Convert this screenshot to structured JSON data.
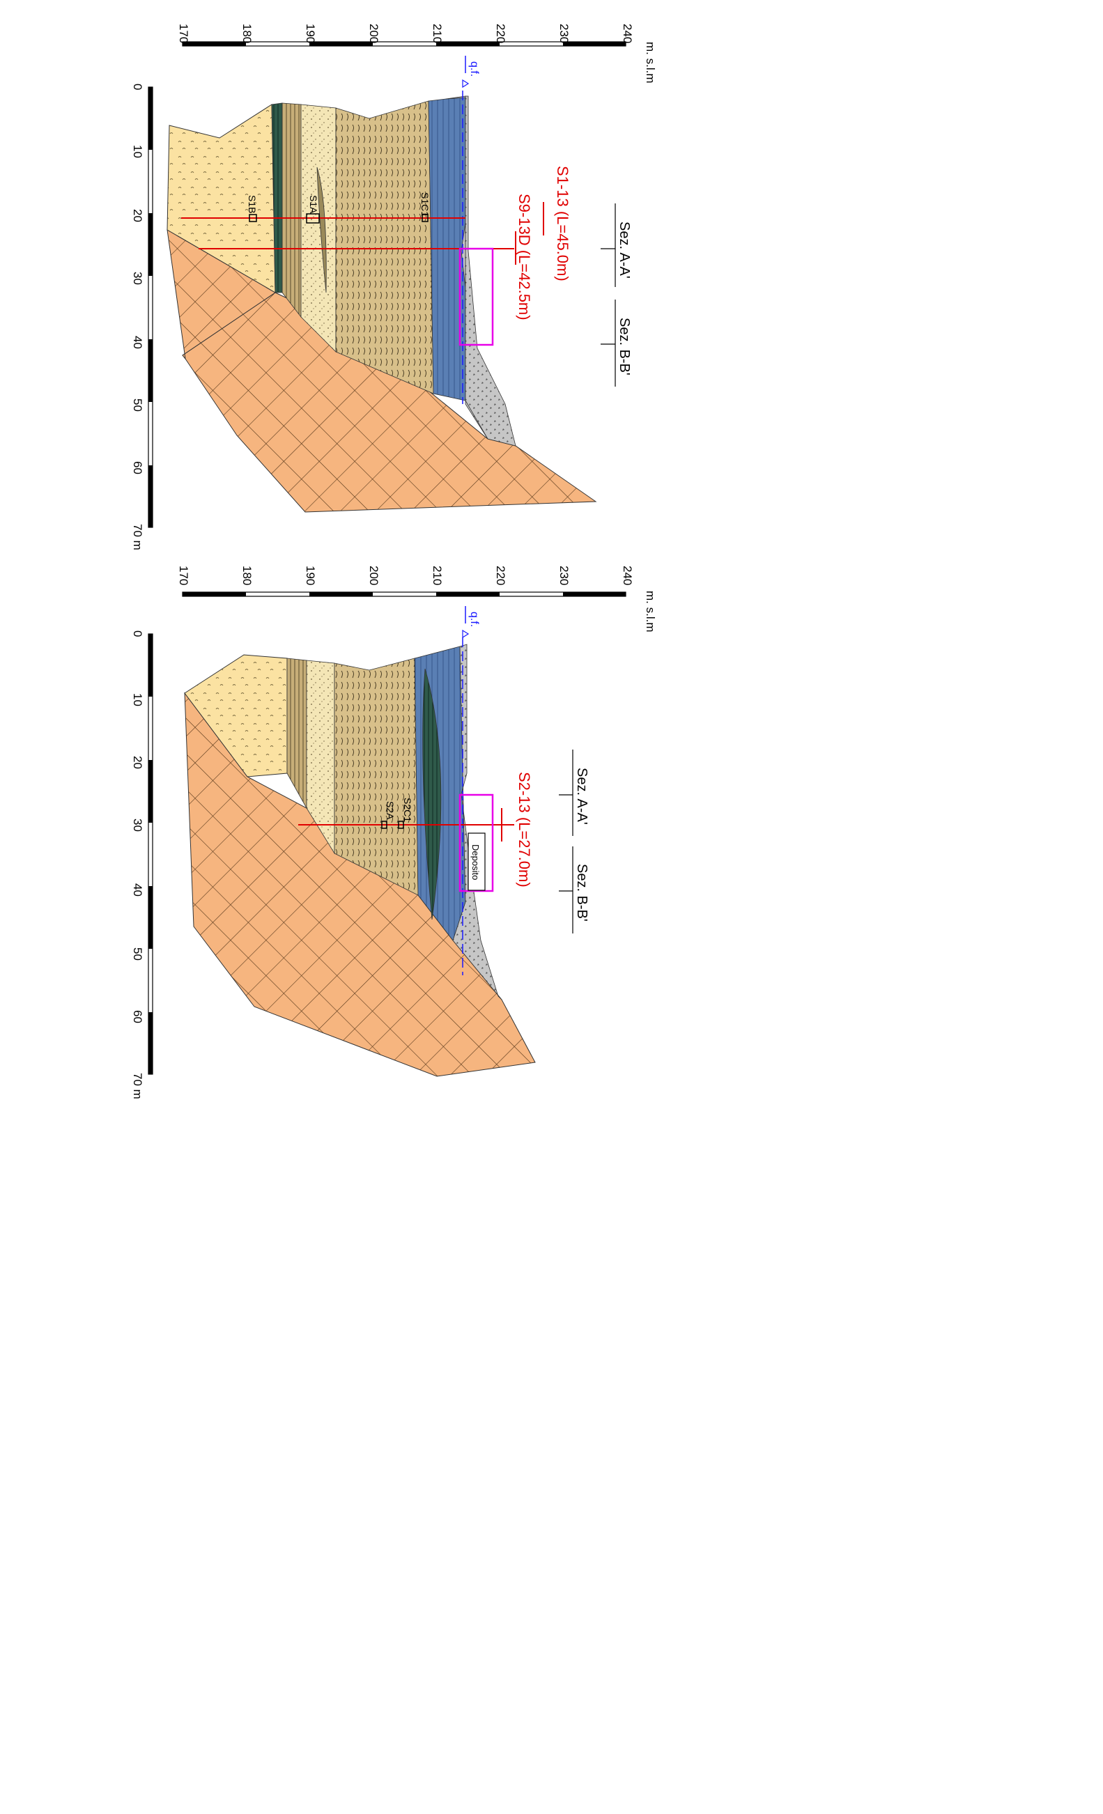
{
  "sections": [
    {
      "id": "A-A'",
      "titles": {
        "primary": "Sez. A-A'",
        "secondary": "Sez. B-B'"
      },
      "elevation_axis": {
        "unit": "m. s.l.m",
        "ticks": [
          "170",
          "180",
          "190",
          "200",
          "210",
          "220",
          "230",
          "240"
        ]
      },
      "distance_axis": {
        "ticks": [
          "0",
          "10",
          "20",
          "30",
          "40",
          "50",
          "60",
          "70 m"
        ]
      },
      "water_table_label": "q.f.",
      "boreholes": [
        {
          "label": "S1-13 (L=45.0m)"
        },
        {
          "label": "S9-13D (L=42.5m)"
        }
      ],
      "samples": [
        "S1C1",
        "S1A",
        "S1B"
      ]
    },
    {
      "id": "B-B'",
      "titles": {
        "primary": "Sez. A-A'",
        "secondary": "Sez. B-B'"
      },
      "elevation_axis": {
        "unit": "m. s.l.m",
        "ticks": [
          "170",
          "180",
          "190",
          "200",
          "210",
          "220",
          "230",
          "240"
        ]
      },
      "distance_axis": {
        "ticks": [
          "0",
          "10",
          "20",
          "30",
          "40",
          "50",
          "60",
          "70 m"
        ]
      },
      "water_table_label": "q.f.",
      "boreholes": [
        {
          "label": "S2-13 (L=27.0m)"
        }
      ],
      "samples": [
        "S2C1",
        "S2A"
      ],
      "deposit_label": "Deposito"
    }
  ],
  "colors": {
    "rock": "#f6b57f",
    "clay_yellow": "#fbe2a2",
    "sand": "#f4e6b6",
    "silt": "#d8c08a",
    "gravel_blue": "#5a7fb4",
    "fill_grey": "#c6c6c6",
    "borehole": "#e00000",
    "highlight": "#e800e8",
    "water": "#1a1aff"
  }
}
